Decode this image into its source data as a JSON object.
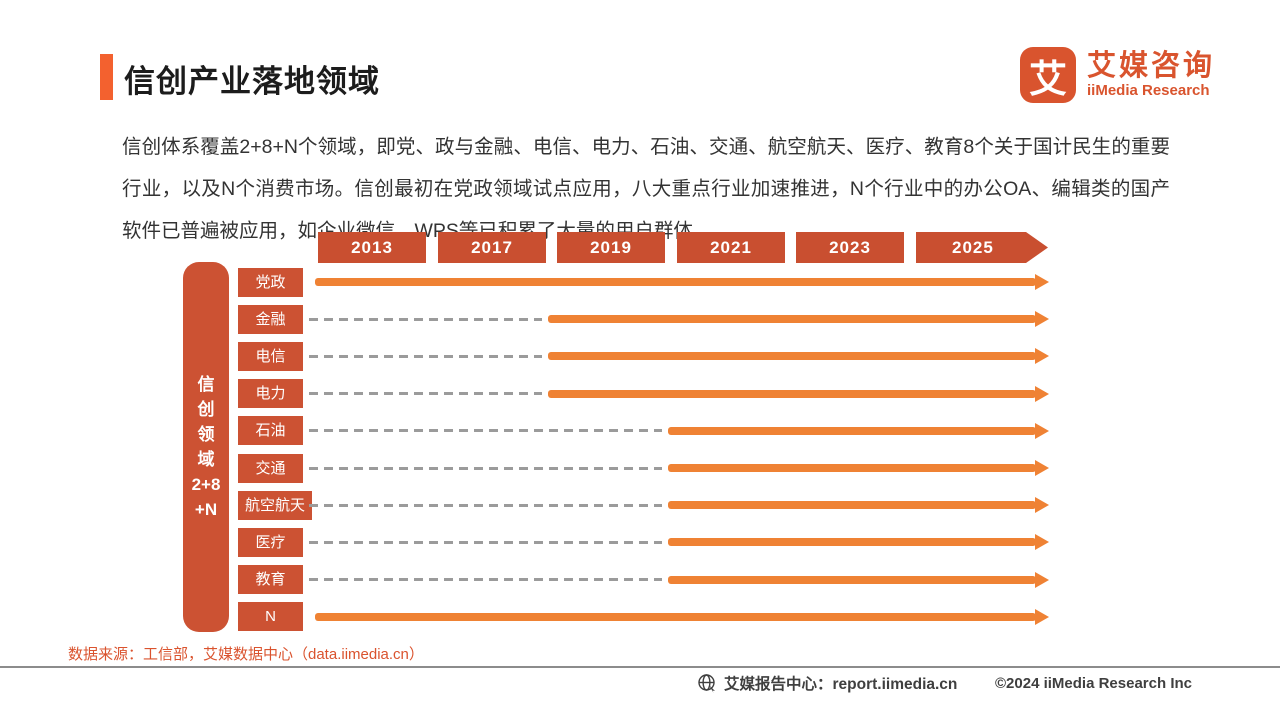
{
  "header": {
    "title": "信创产业落地领域",
    "logo": {
      "icon_char": "艾",
      "brand_cn": "艾媒咨询",
      "brand_en": "iiMedia Research"
    }
  },
  "intro": "信创体系覆盖2+8+N个领域，即党、政与金融、电信、电力、石油、交通、航空航天、医疗、教育8个关于国计民生的重要行业，以及N个消费市场。信创最初在党政领域试点应用，八大重点行业加速推进，N个行业中的办公OA、编辑类的国产软件已普遍被应用，如企业微信、WPS等已积累了大量的用户群体。",
  "chart_data": {
    "type": "timeline",
    "title": "信创产业落地领域",
    "years": [
      "2013",
      "2017",
      "2019",
      "2021",
      "2023",
      "2025"
    ],
    "axis_label_lines": [
      "信",
      "创",
      "领",
      "域",
      "2+8",
      "+N"
    ],
    "rows": [
      {
        "label": "党政",
        "solid_from": "2013"
      },
      {
        "label": "金融",
        "solid_from": "2019"
      },
      {
        "label": "电信",
        "solid_from": "2019"
      },
      {
        "label": "电力",
        "solid_from": "2019"
      },
      {
        "label": "石油",
        "solid_from": "2021"
      },
      {
        "label": "交通",
        "solid_from": "2021"
      },
      {
        "label": "航空航天",
        "solid_from": "2021"
      },
      {
        "label": "医疗",
        "solid_from": "2021"
      },
      {
        "label": "教育",
        "solid_from": "2021"
      },
      {
        "label": "N",
        "solid_from": "2013"
      }
    ],
    "layout": {
      "line_solid_style": "orange arrow",
      "line_dashed_style": "gray dashed (before landing year)"
    }
  },
  "source": "数据来源：工信部，艾媒数据中心（data.iimedia.cn）",
  "footer": {
    "report_center": "艾媒报告中心：report.iimedia.cn",
    "copyright": "©2024  iiMedia Research Inc"
  },
  "colors": {
    "accent_orange": "#f3612f",
    "deep_orange": "#cc5233",
    "year_box": "#c94f30",
    "arrow_orange": "#ef8234",
    "dash_gray": "#9b9b9b",
    "brand_red": "#d9542e",
    "source_red": "#da532e"
  }
}
